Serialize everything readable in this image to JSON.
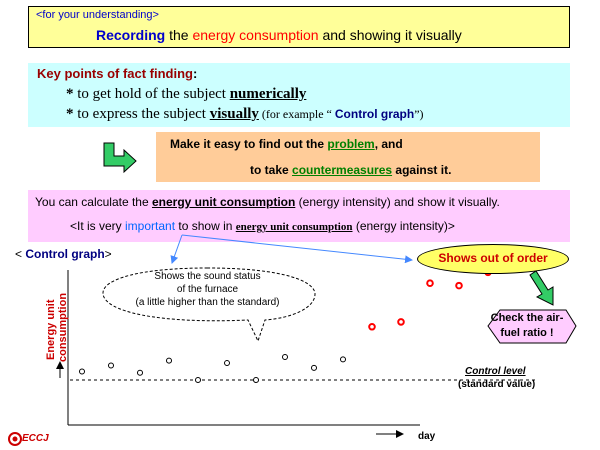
{
  "title": {
    "tag": "<for your understanding>",
    "w1": "Recording",
    "w2": " the ",
    "w3": "energy consumption",
    "w4": " and showing it visually"
  },
  "key_points": {
    "title": "Key points of fact finding",
    "colon": ":",
    "p1_star": "*",
    "p1_pre": " to get hold of the subject ",
    "p1_em": "numerically",
    "p2_star": "*",
    "p2_pre": " to express the subject ",
    "p2_em": "visually",
    "p2_ex_pre": "(for example “ ",
    "p2_ex_em": "Control graph",
    "p2_ex_post": "”)"
  },
  "make_easy": {
    "l1_pre": "Make it easy to find out the ",
    "l1_em": "problem",
    "l1_post": ", and",
    "l2_pre": "to take ",
    "l2_em": "countermeasures",
    "l2_post": " against it."
  },
  "calc": {
    "l1_pre": "You can calculate the ",
    "l1_em": "energy unit consumption",
    "l1_post": " (energy intensity) and show it visually.",
    "l2_pre": "<It is very ",
    "l2_blue": "important",
    "l2_mid": " to show in ",
    "l2_em": "energy unit consumption",
    "l2_post": " (energy intensity)>"
  },
  "control_graph": {
    "lt": "< ",
    "label": "Control graph",
    "gt": ">",
    "callout": [
      "Shows the sound status",
      "of the furnace",
      "(a little higher than the standard)"
    ],
    "order_bubble": "Shows out of order",
    "check": "Check the air-fuel ratio !",
    "ylabel_line1": "Energy unit",
    "ylabel_line2": "consumption",
    "control_level": "Control level",
    "standard_value": "(standard value)",
    "xlabel": "day"
  },
  "logo": "ECCJ",
  "colors": {
    "title_bg": "#ffff99",
    "key_bg": "#ccffff",
    "make_bg": "#ffcc99",
    "calc_bg": "#ffccff",
    "order_bubble_bg": "#ffff66",
    "check_bg": "#ffccff",
    "green_arrow": "#33cc66",
    "abnormal_point": "#ff0000",
    "normal_point": "#000000"
  },
  "chart_data": {
    "type": "scatter",
    "xlabel": "day",
    "ylabel": "Energy unit consumption",
    "normal_points": {
      "x": [
        1,
        2,
        3,
        4,
        5,
        6,
        7,
        8,
        9,
        10
      ],
      "y": [
        43,
        48,
        42,
        52,
        36,
        50,
        36,
        55,
        46,
        53
      ]
    },
    "abnormal_points": {
      "x": [
        11,
        12,
        13,
        14,
        15
      ],
      "y": [
        80,
        84,
        116,
        114,
        125
      ]
    },
    "control_level": 36
  }
}
